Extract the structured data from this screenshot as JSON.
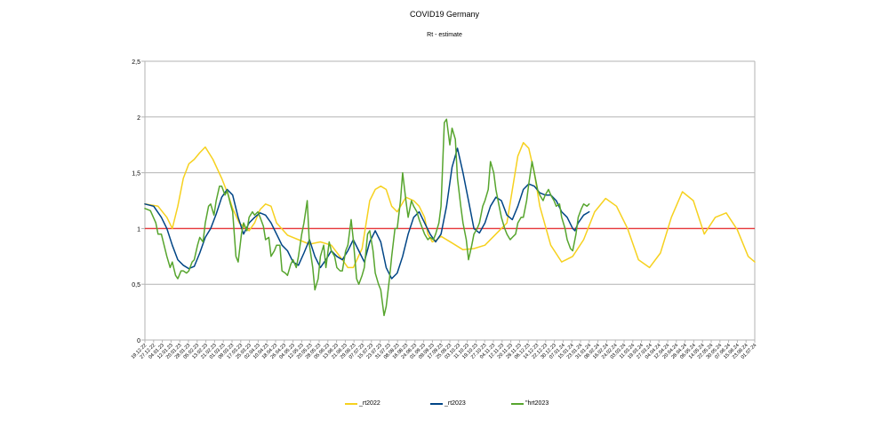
{
  "chart_data": {
    "type": "line",
    "title": "COVID19 Germany",
    "subtitle": "Rt - estimate",
    "xlabel": "",
    "ylabel": "",
    "ylim": [
      0,
      2.5
    ],
    "y_ticks": [
      0,
      0.5,
      1,
      1.5,
      2,
      2.5
    ],
    "y_tick_labels": [
      "0",
      "0,5",
      "1",
      "1,5",
      "2",
      "2,5"
    ],
    "grid": true,
    "legend_position": "bottom",
    "x_range": [
      0,
      556
    ],
    "x_tick_labels": [
      "19.12.22",
      "27.12.22",
      "04.01.23",
      "12.01.23",
      "20.01.23",
      "28.01.23",
      "05.02.23",
      "13.02.23",
      "21.02.23",
      "01.03.23",
      "09.03.23",
      "17.03.23",
      "25.03.23",
      "02.04.23",
      "10.04.23",
      "18.04.23",
      "26.04.23",
      "04.05.23",
      "12.05.23",
      "20.05.23",
      "28.05.23",
      "05.06.23",
      "13.06.23",
      "21.06.23",
      "29.06.23",
      "07.07.23",
      "15.07.23",
      "23.07.23",
      "31.07.23",
      "08.08.23",
      "16.08.23",
      "24.08.23",
      "01.09.23",
      "09.09.23",
      "17.09.23",
      "25.09.23",
      "03.10.23",
      "11.10.23",
      "19.10.23",
      "27.10.23",
      "04.11.23",
      "12.11.23",
      "20.11.23",
      "28.11.23",
      "06.12.23",
      "14.12.23",
      "22.12.23",
      "30.12.23",
      "07.01.24",
      "15.01.24",
      "23.01.24",
      "31.01.24",
      "08.02.24",
      "16.02.24",
      "24.02.24",
      "03.03.24",
      "11.03.24",
      "19.03.24",
      "27.03.24",
      "04.04.24",
      "12.04.24",
      "20.04.24",
      "28.04.24",
      "06.05.24",
      "14.05.24",
      "22.05.24",
      "30.05.24",
      "07.06.24",
      "15.06.24",
      "23.06.24",
      "01.07.24"
    ],
    "reference_line": {
      "y": 1,
      "color": "#e8383b"
    },
    "series": [
      {
        "name": "_rt2022",
        "color": "#f6d11f",
        "x": [
          0,
          12,
          16,
          20,
          25,
          30,
          35,
          40,
          45,
          50,
          55,
          62,
          70,
          76,
          80,
          86,
          95,
          100,
          105,
          110,
          115,
          120,
          130,
          140,
          150,
          160,
          170,
          180,
          185,
          190,
          198,
          205,
          210,
          215,
          220,
          225,
          230,
          238,
          245,
          250,
          255,
          258,
          262,
          266,
          270,
          280,
          290,
          300,
          310,
          320,
          330,
          340,
          345,
          350,
          355,
          360,
          370,
          380,
          390,
          400,
          410,
          420,
          430,
          440,
          450,
          460,
          470,
          480,
          490,
          500,
          510,
          520,
          530,
          540,
          550,
          556
        ],
        "values": [
          1.22,
          1.2,
          1.15,
          1.1,
          1.0,
          1.2,
          1.45,
          1.58,
          1.62,
          1.68,
          1.73,
          1.62,
          1.45,
          1.3,
          1.18,
          1.05,
          0.98,
          1.05,
          1.17,
          1.22,
          1.2,
          1.05,
          0.94,
          0.9,
          0.86,
          0.88,
          0.85,
          0.72,
          0.65,
          0.65,
          0.82,
          1.25,
          1.35,
          1.38,
          1.35,
          1.2,
          1.15,
          1.28,
          1.25,
          1.2,
          1.1,
          0.95,
          0.88,
          0.9,
          0.93,
          0.87,
          0.81,
          0.82,
          0.85,
          0.95,
          1.05,
          1.65,
          1.77,
          1.72,
          1.5,
          1.2,
          0.85,
          0.7,
          0.75,
          0.9,
          1.15,
          1.27,
          1.2,
          1.0,
          0.72,
          0.65,
          0.78,
          1.1,
          1.33,
          1.25,
          0.95,
          1.1,
          1.14,
          0.99,
          0.75,
          0.7
        ],
        "segment_note": ""
      },
      {
        "name": "_rt2023",
        "color": "#004586",
        "x": [
          0,
          8,
          15,
          20,
          25,
          30,
          35,
          40,
          45,
          50,
          55,
          60,
          65,
          70,
          75,
          80,
          85,
          90,
          95,
          100,
          105,
          110,
          115,
          120,
          125,
          130,
          135,
          140,
          145,
          150,
          155,
          160,
          165,
          170,
          175,
          180,
          185,
          190,
          195,
          200,
          205,
          210,
          215,
          220,
          225,
          230,
          235,
          240,
          245,
          250,
          255,
          260,
          265,
          270,
          275,
          280,
          285,
          290,
          295,
          300,
          305,
          310,
          315,
          320,
          325,
          330,
          335,
          340,
          345,
          350,
          355,
          360,
          365,
          370,
          375,
          380,
          385,
          390,
          392,
          395,
          400,
          405
        ],
        "values": [
          1.22,
          1.2,
          1.1,
          1.0,
          0.85,
          0.72,
          0.67,
          0.64,
          0.66,
          0.78,
          0.92,
          1.0,
          1.13,
          1.28,
          1.35,
          1.3,
          1.1,
          0.95,
          1.05,
          1.1,
          1.14,
          1.12,
          1.05,
          0.95,
          0.85,
          0.8,
          0.7,
          0.67,
          0.78,
          0.9,
          0.75,
          0.65,
          0.72,
          0.8,
          0.75,
          0.72,
          0.8,
          0.9,
          0.8,
          0.7,
          0.88,
          0.98,
          0.88,
          0.65,
          0.55,
          0.6,
          0.75,
          0.95,
          1.1,
          1.15,
          1.05,
          0.95,
          0.88,
          0.95,
          1.2,
          1.55,
          1.72,
          1.5,
          1.25,
          1.0,
          0.96,
          1.05,
          1.2,
          1.28,
          1.25,
          1.12,
          1.08,
          1.2,
          1.35,
          1.4,
          1.38,
          1.32,
          1.3,
          1.3,
          1.25,
          1.15,
          1.1,
          1.0,
          0.98,
          1.05,
          1.12,
          1.15
        ]
      },
      {
        "name": "\"hrt2023",
        "color": "#57a52e",
        "x": [
          0,
          5,
          10,
          12,
          15,
          20,
          23,
          25,
          28,
          30,
          33,
          35,
          38,
          40,
          43,
          45,
          48,
          50,
          53,
          55,
          58,
          60,
          63,
          65,
          68,
          70,
          73,
          75,
          78,
          80,
          83,
          85,
          88,
          90,
          93,
          95,
          98,
          100,
          103,
          105,
          108,
          110,
          113,
          115,
          118,
          120,
          123,
          125,
          128,
          130,
          133,
          135,
          138,
          140,
          143,
          145,
          148,
          150,
          153,
          155,
          158,
          160,
          163,
          165,
          168,
          170,
          173,
          175,
          178,
          180,
          183,
          185,
          188,
          190,
          193,
          195,
          198,
          200,
          203,
          205,
          208,
          210,
          213,
          215,
          218,
          220,
          223,
          225,
          228,
          230,
          233,
          235,
          238,
          240,
          243,
          245,
          248,
          250,
          253,
          255,
          258,
          260,
          263,
          265,
          268,
          270,
          273,
          275,
          278,
          280,
          283,
          285,
          288,
          290,
          293,
          295,
          298,
          300,
          303,
          305,
          308,
          310,
          313,
          315,
          318,
          320,
          323,
          325,
          328,
          330,
          333,
          335,
          338,
          340,
          343,
          345,
          348,
          350,
          353,
          355,
          358,
          360,
          363,
          365,
          368,
          370,
          373,
          375,
          378,
          380,
          383,
          385,
          388,
          390,
          393,
          395,
          398,
          400,
          403,
          405
        ],
        "values": [
          1.18,
          1.16,
          1.05,
          0.95,
          0.95,
          0.75,
          0.65,
          0.7,
          0.58,
          0.55,
          0.62,
          0.62,
          0.6,
          0.62,
          0.7,
          0.72,
          0.85,
          0.92,
          0.88,
          1.05,
          1.2,
          1.22,
          1.12,
          1.25,
          1.38,
          1.38,
          1.3,
          1.34,
          1.22,
          1.15,
          0.75,
          0.7,
          0.95,
          1.05,
          0.98,
          1.1,
          1.15,
          1.12,
          1.15,
          1.1,
          1.02,
          0.9,
          0.92,
          0.75,
          0.8,
          0.85,
          0.85,
          0.62,
          0.6,
          0.58,
          0.68,
          0.72,
          0.65,
          0.75,
          0.95,
          1.05,
          1.25,
          0.85,
          0.65,
          0.45,
          0.55,
          0.75,
          0.85,
          0.65,
          0.88,
          0.8,
          0.75,
          0.65,
          0.62,
          0.62,
          0.8,
          0.85,
          1.08,
          0.9,
          0.55,
          0.5,
          0.58,
          0.65,
          0.95,
          0.98,
          0.8,
          0.6,
          0.5,
          0.45,
          0.22,
          0.3,
          0.55,
          0.75,
          1.0,
          1.0,
          1.25,
          1.5,
          1.25,
          1.1,
          1.25,
          1.2,
          1.15,
          1.08,
          1.0,
          0.95,
          0.9,
          0.92,
          0.9,
          0.95,
          1.05,
          1.2,
          1.95,
          1.98,
          1.75,
          1.9,
          1.8,
          1.45,
          1.2,
          1.05,
          0.9,
          0.72,
          0.85,
          0.95,
          1.0,
          1.05,
          1.2,
          1.25,
          1.35,
          1.6,
          1.5,
          1.35,
          1.2,
          1.1,
          1.0,
          0.95,
          0.9,
          0.92,
          0.95,
          1.05,
          1.1,
          1.1,
          1.25,
          1.4,
          1.6,
          1.5,
          1.35,
          1.3,
          1.25,
          1.3,
          1.35,
          1.3,
          1.25,
          1.2,
          1.22,
          1.1,
          1.0,
          0.9,
          0.82,
          0.8,
          0.95,
          1.1,
          1.18,
          1.22,
          1.2,
          1.22
        ]
      }
    ]
  }
}
